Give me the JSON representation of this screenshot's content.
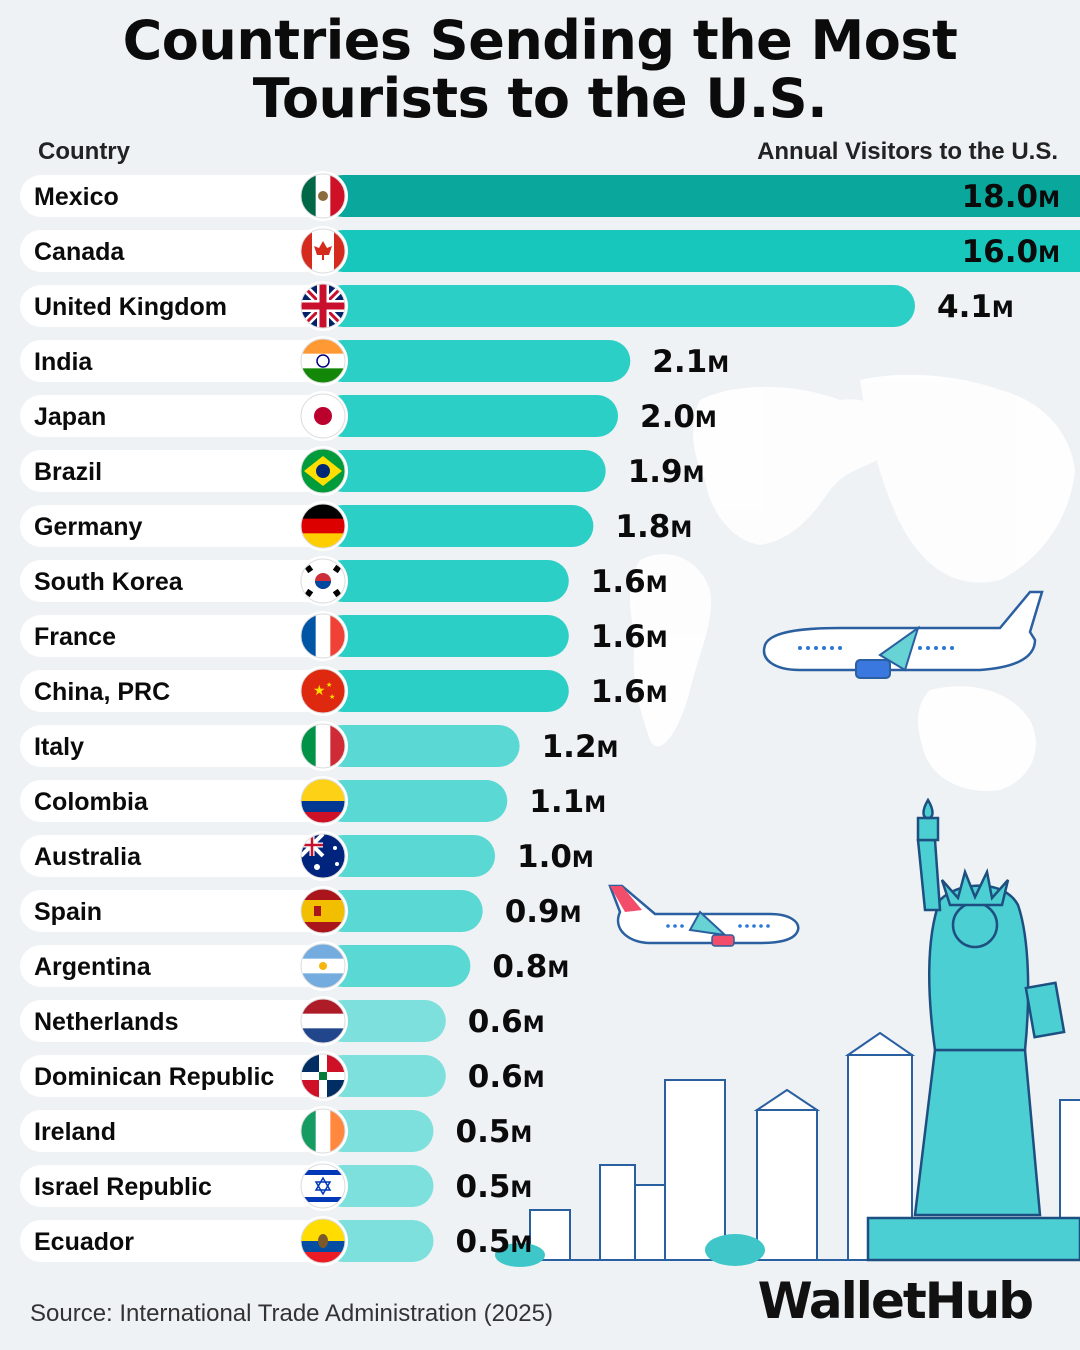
{
  "title": "Countries Sending the Most Tourists to the U.S.",
  "column_headers": {
    "country": "Country",
    "visitors": "Annual Visitors to the U.S."
  },
  "source": "Source: International Trade Administration (2025)",
  "brand": "WalletHub",
  "colors": {
    "bar_dark": "#0aa79c",
    "bar_mid": "#18c7bc",
    "bar_light": "#2ccfc6",
    "bar_pale": "#7de0dc",
    "label": "#0b0b0b",
    "row_bg": "#ffffff"
  },
  "chart_data": {
    "type": "bar",
    "orientation": "horizontal",
    "xlabel": "Annual Visitors to the U.S.",
    "ylabel": "Country",
    "categories": [
      "Mexico",
      "Canada",
      "United Kingdom",
      "India",
      "Japan",
      "Brazil",
      "Germany",
      "South Korea",
      "France",
      "China, PRC",
      "Italy",
      "Colombia",
      "Australia",
      "Spain",
      "Argentina",
      "Netherlands",
      "Dominican Republic",
      "Ireland",
      "Israel Republic",
      "Ecuador"
    ],
    "values": [
      18.0,
      16.0,
      4.1,
      2.1,
      2.0,
      1.9,
      1.8,
      1.6,
      1.6,
      1.6,
      1.2,
      1.1,
      1.0,
      0.9,
      0.8,
      0.6,
      0.6,
      0.5,
      0.5,
      0.5
    ],
    "value_labels": [
      "18.0M",
      "16.0M",
      "4.1M",
      "2.1M",
      "2.0M",
      "1.9M",
      "1.8M",
      "1.6M",
      "1.6M",
      "1.6M",
      "1.2M",
      "1.1M",
      "1.0M",
      "0.9M",
      "0.8M",
      "0.6M",
      "0.6M",
      "0.5M",
      "0.5M",
      "0.5M"
    ],
    "flag_icons": [
      "mexico-flag-icon",
      "canada-flag-icon",
      "uk-flag-icon",
      "india-flag-icon",
      "japan-flag-icon",
      "brazil-flag-icon",
      "germany-flag-icon",
      "south-korea-flag-icon",
      "france-flag-icon",
      "china-flag-icon",
      "italy-flag-icon",
      "colombia-flag-icon",
      "australia-flag-icon",
      "spain-flag-icon",
      "argentina-flag-icon",
      "netherlands-flag-icon",
      "dominican-republic-flag-icon",
      "ireland-flag-icon",
      "israel-flag-icon",
      "ecuador-flag-icon"
    ],
    "units": "M",
    "note": "Mexico and Canada bars extend beyond the chart edge"
  }
}
